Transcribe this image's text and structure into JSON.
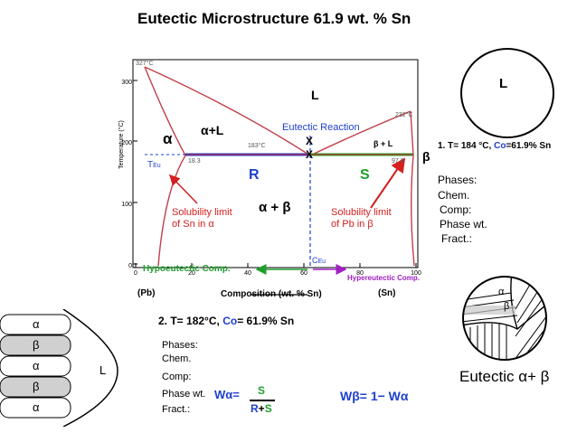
{
  "title": "Eutectic Microstructure 61.9 wt. % Sn",
  "chart": {
    "ylabel": "Temperature (°C)",
    "xlabel": "Composition (wt. % Sn)",
    "left_end": "(Pb)",
    "right_end": "(Sn)",
    "y_ticks": [
      "300",
      "200",
      "100",
      "0"
    ],
    "x_ticks": [
      "0",
      "20",
      "40",
      "60",
      "80",
      "100"
    ],
    "melt_pb": "327°C",
    "melt_sn": "232°C",
    "eutectic_temp_label": "183°C",
    "comp_alpha": "18.3",
    "comp_beta": "97.8",
    "regions": {
      "liquid": "L",
      "alpha": "α",
      "alpha_liquid": "α+L",
      "beta_liquid": "β + L",
      "beta": "β",
      "alpha_beta": "α + β"
    },
    "eutectic_reaction": "Eutectic Reaction",
    "x_mark_top": "X",
    "x_mark_bottom": "X",
    "t_eu": "T",
    "t_eu_sub": "Eu",
    "c_eu": "C",
    "c_eu_sub": "Eu",
    "lever_r": "R",
    "lever_s": "S",
    "solubility_sn": [
      "Solubility limit",
      "of Sn in α"
    ],
    "solubility_pb": [
      "Solubility limit",
      "of Pb in β"
    ],
    "hypo": "Hypoeutectic Comp.",
    "hyper": "Hypereutectic Comp.",
    "colors": {
      "curve": "#c0404a",
      "blue": "#1f3fd0",
      "green": "#1f9e2c",
      "red": "#d42020",
      "magenta": "#a020c0"
    }
  },
  "panel1": {
    "circle_label": "L",
    "heading": "1. T= 184 °C,",
    "co": "Co",
    "comp": "=61.9% Sn",
    "phases": "Phases:",
    "chem": "Chem.",
    "comp_label": "Comp:",
    "phase_wt": "Phase wt.",
    "fract": "Fract.:"
  },
  "panel2": {
    "heading_a": "2. T= 182°C,",
    "co": "Co",
    "heading_b": "= 61.9% Sn",
    "phases": "Phases:",
    "chem": "Chem.",
    "comp_label": "Comp:",
    "phase_wt": "Phase wt.",
    "fract": "Fract.:",
    "w_alpha": "Wα=",
    "frac_num": "S",
    "frac_den_r": "R",
    "frac_den_plus": "+",
    "frac_den_s": "S",
    "w_beta": "Wβ= 1− Wα"
  },
  "lamellae": {
    "layers": [
      "α",
      "β",
      "α",
      "β",
      "α"
    ],
    "liquid": "L"
  },
  "eutectic_circle": {
    "alpha": "α",
    "beta": "β",
    "caption": "Eutectic α+ β"
  }
}
